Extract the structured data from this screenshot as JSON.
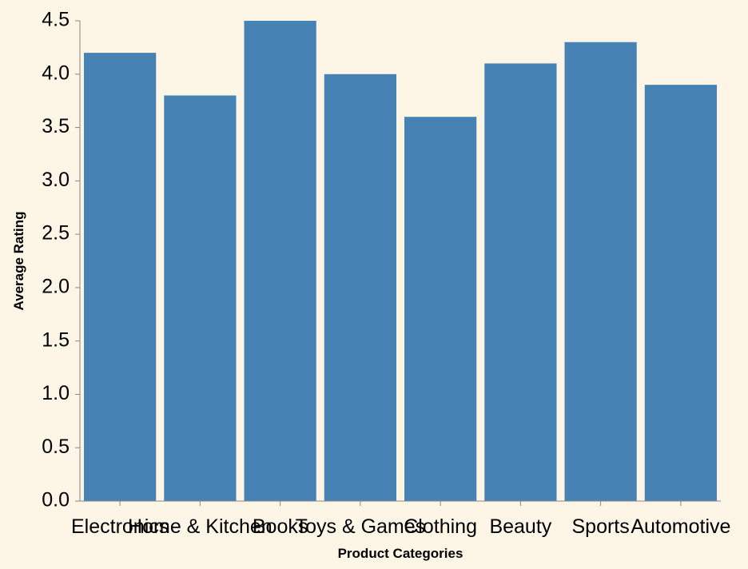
{
  "chart_data": {
    "type": "bar",
    "categories": [
      "Electronics",
      "Home & Kitchen",
      "Books",
      "Toys & Games",
      "Clothing",
      "Beauty",
      "Sports",
      "Automotive"
    ],
    "values": [
      4.2,
      3.8,
      4.5,
      4.0,
      3.6,
      4.1,
      4.3,
      3.9
    ],
    "xlabel": "Product Categories",
    "ylabel": "Average Rating",
    "ylim": [
      0,
      4.5
    ],
    "yticks": [
      "0.0",
      "0.5",
      "1.0",
      "1.5",
      "2.0",
      "2.5",
      "3.0",
      "3.5",
      "4.0",
      "4.5"
    ],
    "grid": false,
    "colors": {
      "bar": "#4682b4",
      "background": "#fdf5e6",
      "axis": "#888888"
    }
  }
}
